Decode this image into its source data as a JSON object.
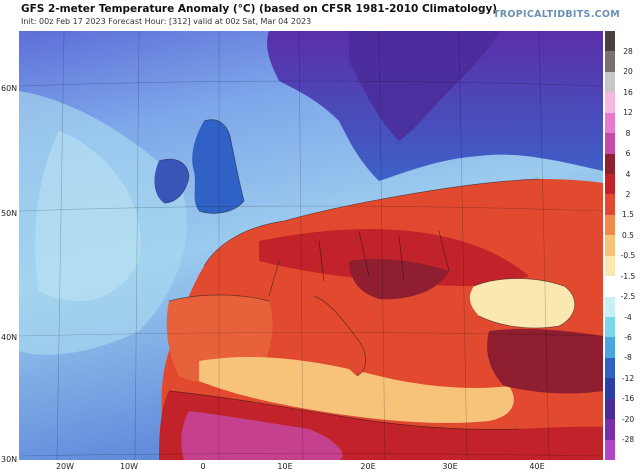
{
  "header": {
    "title": "GFS 2-meter Temperature Anomaly (°C) (based on CFSR 1981-2010 Climatology)",
    "subtitle": "Init: 00z Feb 17 2023   Forecast Hour: [312]   valid at 00z Sat, Mar 04 2023",
    "brand": "TROPICALTIDBITS.COM"
  },
  "axes": {
    "lat_labels": [
      "60N",
      "50N",
      "40N",
      "30N"
    ],
    "lon_labels": [
      "20W",
      "10W",
      "0",
      "10E",
      "20E",
      "30E",
      "40E"
    ]
  },
  "colorbar": {
    "labels": [
      "28",
      "20",
      "16",
      "12",
      "8",
      "6",
      "4",
      "2",
      "1.5",
      "0.5",
      "-0.5",
      "-1.5",
      "-2.5",
      "-4",
      "-6",
      "-8",
      "-12",
      "-16",
      "-20",
      "-28"
    ],
    "colors": [
      "#4a4040",
      "#7a7070",
      "#c7c7c7",
      "#f5b8e3",
      "#e77ad0",
      "#c64aa8",
      "#8e1e30",
      "#c2222a",
      "#e24a30",
      "#f08a4a",
      "#f7c27a",
      "#fbe8b0",
      "#ffffff",
      "#c8eef6",
      "#7ed6ea",
      "#4aa6dc",
      "#2f62c4",
      "#2a3fa6",
      "#4a2a98",
      "#7a2fa8",
      "#b245c6"
    ]
  },
  "map": {
    "ocean_color": "#6f93e0",
    "colors": {
      "cold_land": "#2f62c4",
      "deep_cold": "#4a2a98",
      "warm": "#e24a30",
      "hot": "#c2222a",
      "very_hot": "#8e1e30",
      "mild": "#f08a4a",
      "neutral": "#f7c27a",
      "sahara": "#c64aa8"
    }
  }
}
